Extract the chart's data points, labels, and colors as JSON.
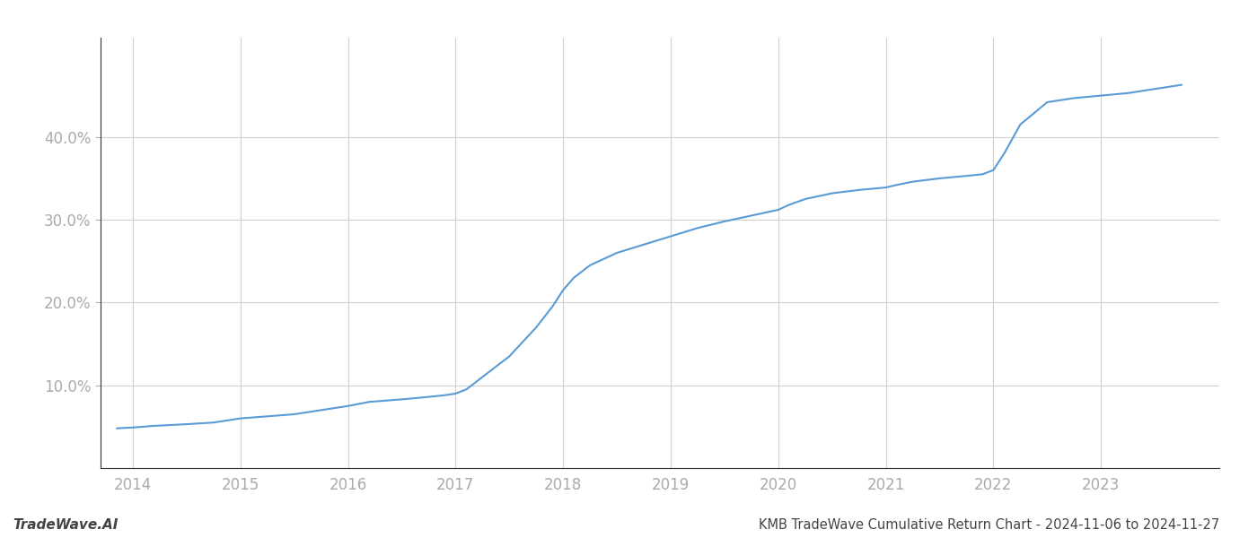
{
  "title": "KMB TradeWave Cumulative Return Chart - 2024-11-06 to 2024-11-27",
  "watermark": "TradeWave.AI",
  "line_color": "#5b9bd5",
  "background_color": "#ffffff",
  "grid_color": "#d0d0d0",
  "x_values": [
    2013.85,
    2014.0,
    2014.2,
    2014.5,
    2014.75,
    2015.0,
    2015.2,
    2015.5,
    2015.75,
    2016.0,
    2016.2,
    2016.5,
    2016.75,
    2016.9,
    2017.0,
    2017.1,
    2017.25,
    2017.5,
    2017.75,
    2017.9,
    2018.0,
    2018.1,
    2018.25,
    2018.5,
    2018.75,
    2019.0,
    2019.25,
    2019.5,
    2019.75,
    2020.0,
    2020.1,
    2020.25,
    2020.5,
    2020.75,
    2021.0,
    2021.1,
    2021.25,
    2021.5,
    2021.75,
    2021.9,
    2022.0,
    2022.1,
    2022.25,
    2022.5,
    2022.75,
    2023.0,
    2023.25,
    2023.5,
    2023.75
  ],
  "y_values": [
    4.8,
    4.9,
    5.1,
    5.3,
    5.5,
    6.0,
    6.2,
    6.5,
    7.0,
    7.5,
    8.0,
    8.3,
    8.6,
    8.8,
    9.0,
    9.5,
    11.0,
    13.5,
    17.0,
    19.5,
    21.5,
    23.0,
    24.5,
    26.0,
    27.0,
    28.0,
    29.0,
    29.8,
    30.5,
    31.2,
    31.8,
    32.5,
    33.2,
    33.6,
    33.9,
    34.2,
    34.6,
    35.0,
    35.3,
    35.5,
    36.0,
    38.0,
    41.5,
    44.2,
    44.7,
    45.0,
    45.3,
    45.8,
    46.3
  ],
  "xlim": [
    2013.7,
    2024.1
  ],
  "ylim": [
    0,
    52
  ],
  "yticks": [
    10.0,
    20.0,
    30.0,
    40.0
  ],
  "ytick_labels": [
    "10.0%",
    "20.0%",
    "30.0%",
    "40.0%"
  ],
  "xticks": [
    2014,
    2015,
    2016,
    2017,
    2018,
    2019,
    2020,
    2021,
    2022,
    2023
  ],
  "xtick_labels": [
    "2014",
    "2015",
    "2016",
    "2017",
    "2018",
    "2019",
    "2020",
    "2021",
    "2022",
    "2023"
  ],
  "line_width": 1.5,
  "title_fontsize": 10.5,
  "tick_fontsize": 12,
  "watermark_fontsize": 11,
  "axis_color": "#444444",
  "tick_color": "#aaaaaa",
  "spine_color": "#333333"
}
